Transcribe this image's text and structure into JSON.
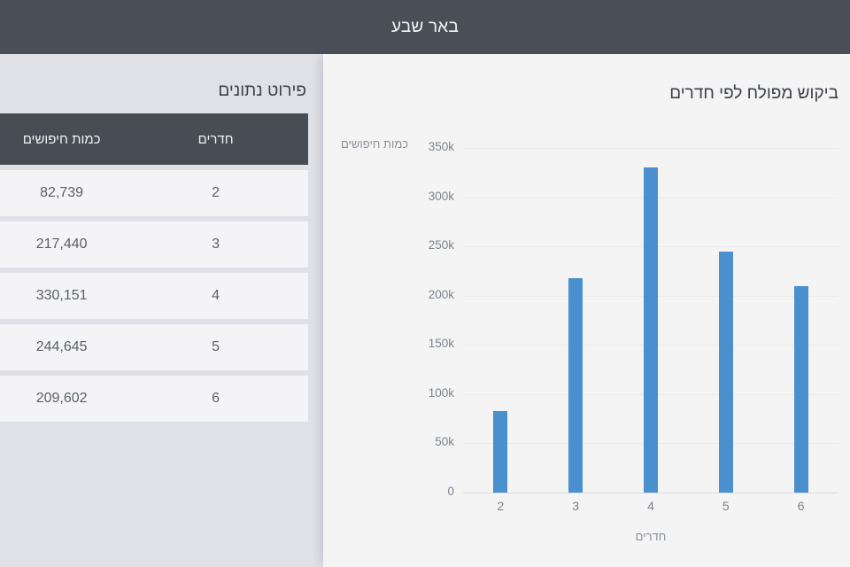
{
  "header": {
    "title": "באר שבע"
  },
  "panel": {
    "title": "פירוט נתונים",
    "table": {
      "columns": [
        "חדרים",
        "כמות חיפושים"
      ],
      "rows": [
        {
          "rooms": "2",
          "searches": "82,739"
        },
        {
          "rooms": "3",
          "searches": "217,440"
        },
        {
          "rooms": "4",
          "searches": "330,151"
        },
        {
          "rooms": "5",
          "searches": "244,645"
        },
        {
          "rooms": "6",
          "searches": "209,602"
        }
      ]
    }
  },
  "chart_data": {
    "type": "bar",
    "title": "ביקוש מפולח לפי חדרים",
    "xlabel": "חדרים",
    "ylabel": "כמות חיפושים",
    "categories": [
      "2",
      "3",
      "4",
      "5",
      "6"
    ],
    "values": [
      82739,
      217440,
      330151,
      244645,
      209602
    ],
    "ylim": [
      0,
      350000
    ],
    "ytick_step": 50000,
    "ytick_labels": [
      "0",
      "50k",
      "100k",
      "150k",
      "200k",
      "250k",
      "300k",
      "350k"
    ],
    "bar_color": "#4a90ce",
    "grid": true,
    "legend": "none"
  },
  "colors": {
    "header_bg": "#4a4e57",
    "table_header_bg": "#484c55",
    "row_bg": "#f4f4f6",
    "panel_bg": "#dfe1e6",
    "chart_bg": "#f4f4f5",
    "bar": "#4a90ce"
  }
}
